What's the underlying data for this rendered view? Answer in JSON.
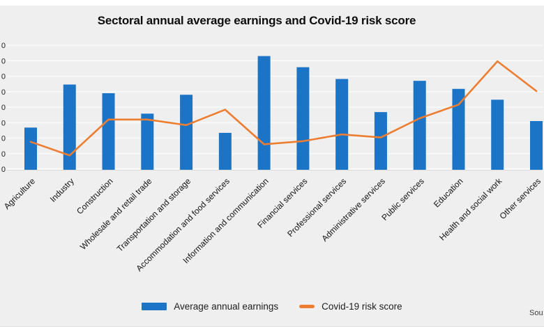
{
  "page": {
    "title": "Sectoral annual average earnings and Covid-19 risk score",
    "source_label": "Sou"
  },
  "legend": {
    "items": [
      {
        "label": "Average annual earnings",
        "color": "#1b74c6",
        "swatch": "bar"
      },
      {
        "label": "Covid-19 risk score",
        "color": "#ed7d31",
        "swatch": "line"
      }
    ]
  },
  "y_axis": {
    "visible_tick_labels": [
      "0",
      "0",
      "0",
      "0",
      "0",
      "0",
      "0",
      "0",
      "0"
    ]
  },
  "chart_data": {
    "type": "bar-line-combo",
    "title": "Sectoral annual average earnings and Covid-19 risk score",
    "categories": [
      "Agriculture",
      "Industry",
      "Construction",
      "Wholesale and retail trade",
      "Transportation and storage",
      "Accommodation and food services",
      "Information and communication",
      "Financial services",
      "Professional services",
      "Administrative services",
      "Public services",
      "Education",
      "Health and social work",
      "Other services"
    ],
    "series": [
      {
        "name": "Average annual earnings",
        "type": "bar",
        "color": "#1b74c6",
        "axis": "left",
        "ylim": [
          0,
          40000
        ],
        "values": [
          13400,
          27300,
          24500,
          17900,
          24000,
          11700,
          36500,
          32900,
          29100,
          18400,
          28500,
          25900,
          22400,
          15500
        ]
      },
      {
        "name": "Covid-19 risk score",
        "type": "line",
        "color": "#ed7d31",
        "axis": "right",
        "ylim": [
          0,
          100
        ],
        "values": [
          22,
          11,
          40,
          40,
          35.5,
          48,
          20,
          22.5,
          28,
          25.5,
          41,
          52,
          87,
          63
        ]
      }
    ],
    "grid": true,
    "legend_position": "bottom",
    "y_axis_note": "Tick labels cropped at image left edge; only trailing zeros visible"
  },
  "colors": {
    "background": "#efeff0",
    "gridline": "#fafbfb",
    "axis_line": "#fbfbfb",
    "text": "#141414"
  }
}
